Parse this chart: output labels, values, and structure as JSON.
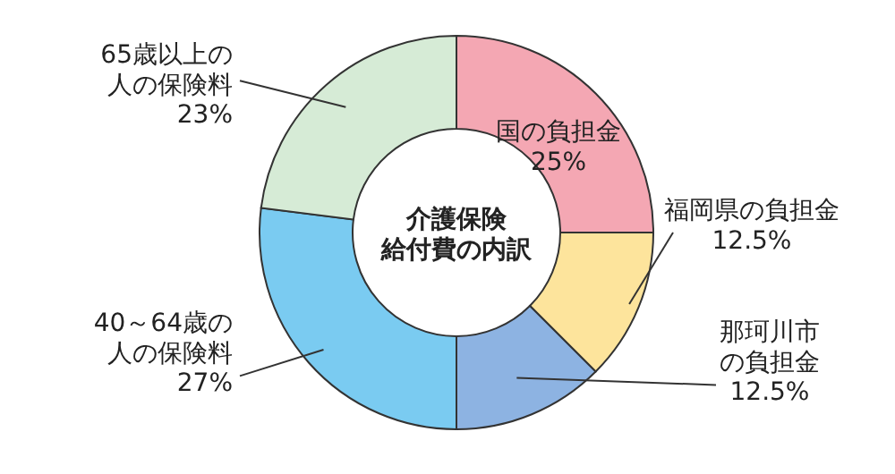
{
  "chart_data": {
    "type": "donut",
    "title": "介護保険給付費の内訳",
    "categories": [
      "国の負担金",
      "福岡県の負担金",
      "那珂川市の負担金",
      "40～64歳の人の保険料",
      "65歳以上の人の保険料"
    ],
    "values": [
      25,
      12.5,
      12.5,
      27,
      23
    ],
    "value_labels": [
      "25%",
      "12.5%",
      "12.5%",
      "27%",
      "23%"
    ],
    "colors": [
      "#f4a7b3",
      "#fde49c",
      "#8db3e2",
      "#7acbf1",
      "#d6ebd6"
    ]
  }
}
